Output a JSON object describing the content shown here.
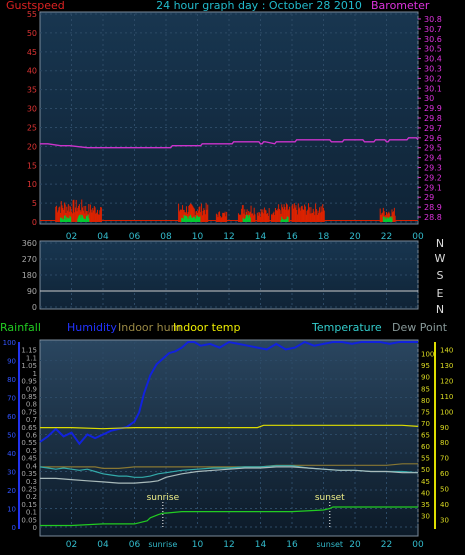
{
  "chart_data": [
    {
      "type": "line",
      "title": "24 hour graph day : October 28 2010",
      "left_label": "Gustspeed",
      "right_label": "Barometer",
      "x_ticks": [
        "02",
        "04",
        "06",
        "08",
        "10",
        "12",
        "14",
        "16",
        "18",
        "20",
        "22",
        "00"
      ],
      "ylim_left": [
        0,
        55
      ],
      "y_ticks_left": [
        0,
        5,
        10,
        15,
        20,
        25,
        30,
        35,
        40,
        45,
        50,
        55
      ],
      "ylim_right": [
        28.75,
        30.85
      ],
      "y_ticks_right": [
        "28.8",
        "28.9",
        "29",
        "29.1",
        "29.2",
        "29.3",
        "29.4",
        "29.5",
        "29.6",
        "29.7",
        "29.8",
        "29.9",
        "30",
        "30.1",
        "30.2",
        "30.3",
        "30.4",
        "30.5",
        "30.6",
        "30.7",
        "30.8"
      ],
      "series": [
        {
          "name": "Barometer",
          "color": "#cc33cc",
          "x": [
            0,
            0.5,
            1.3,
            1.9,
            3.0,
            5.5,
            8.3,
            8.4,
            10.2,
            10.3,
            12.2,
            12.3,
            13.9,
            14.0,
            14.1,
            14.2,
            14.3,
            14.9,
            15.0,
            16.2,
            16.3,
            18.4,
            18.5,
            19.2,
            19.3,
            20.5,
            20.6,
            21.2,
            21.3,
            21.9,
            22.0,
            22.1,
            22.2,
            23.3,
            23.4,
            23.9,
            24.0
          ],
          "y": [
            29.54,
            29.54,
            29.52,
            29.52,
            29.5,
            29.5,
            29.5,
            29.52,
            29.52,
            29.54,
            29.54,
            29.56,
            29.56,
            29.54,
            29.54,
            29.56,
            29.56,
            29.54,
            29.56,
            29.56,
            29.58,
            29.58,
            29.56,
            29.56,
            29.58,
            29.58,
            29.56,
            29.56,
            29.58,
            29.58,
            29.56,
            29.56,
            29.58,
            29.58,
            29.6,
            29.6,
            29.58
          ]
        },
        {
          "name": "Gustspeed",
          "color": "#dd2200",
          "bursts": [
            [
              1.0,
              2.8,
              6
            ],
            [
              2.8,
              3.9,
              5
            ],
            [
              8.8,
              10.7,
              5
            ],
            [
              11.2,
              11.9,
              3
            ],
            [
              12.6,
              13.7,
              5
            ],
            [
              13.8,
              14.6,
              4
            ],
            [
              14.7,
              15.9,
              5
            ],
            [
              16.0,
              18.1,
              5
            ],
            [
              21.6,
              22.6,
              4
            ]
          ]
        },
        {
          "name": "Windspeed",
          "color": "#00cc33",
          "bursts": [
            [
              1.3,
              2.0,
              2
            ],
            [
              2.4,
              3.1,
              2
            ],
            [
              9.0,
              10.2,
              2
            ],
            [
              12.9,
              13.4,
              2
            ],
            [
              15.3,
              15.8,
              1.5
            ],
            [
              21.8,
              22.4,
              2
            ]
          ]
        }
      ]
    },
    {
      "type": "line",
      "x_ticks": [
        "02",
        "04",
        "06",
        "08",
        "10",
        "12",
        "14",
        "16",
        "18",
        "20",
        "22",
        "00"
      ],
      "ylim": [
        0,
        360
      ],
      "y_ticks": [
        0,
        90,
        180,
        270,
        360
      ],
      "compass_labels": [
        "N",
        "W",
        "S",
        "E",
        "N"
      ],
      "series": [
        {
          "name": "Wind direction",
          "color": "#cccccc",
          "x": [
            0,
            24
          ],
          "y": [
            90,
            90
          ]
        }
      ]
    },
    {
      "type": "line",
      "legend": [
        "Rainfall",
        "Humidity",
        "Indoor hum",
        "Indoor temp",
        "Temperature",
        "Dew Point"
      ],
      "x_ticks": [
        "02",
        "04",
        "06",
        "08",
        "10",
        "12",
        "14",
        "16",
        "18",
        "20",
        "22",
        "00"
      ],
      "x_special_labels": [
        "sunrise",
        "sunset"
      ],
      "sunrise_hour": 7.8,
      "sunset_hour": 18.4,
      "ylim_left": [
        0,
        100
      ],
      "y_ticks_left": [
        0,
        10,
        20,
        30,
        40,
        50,
        60,
        70,
        80,
        90,
        100
      ],
      "ylim_inner": [
        0,
        1.2
      ],
      "y_ticks_inner": [
        "0",
        "0.05",
        "0.1",
        "0.15",
        "0.2",
        "0.25",
        "0.3",
        "0.35",
        "0.4",
        "0.45",
        "0.5",
        "0.55",
        "0.6",
        "0.65",
        "0.7",
        "0.75",
        "0.8",
        "0.85",
        "0.9",
        "0.95",
        "1",
        "1.05",
        "1.1",
        "1.15"
      ],
      "ylim_right_outer": [
        25,
        145
      ],
      "y_ticks_right_outer": [
        30,
        40,
        50,
        60,
        70,
        80,
        90,
        100,
        110,
        120,
        130,
        140
      ],
      "ylim_right_inner": [
        25,
        105
      ],
      "y_ticks_right_inner": [
        30,
        35,
        40,
        45,
        50,
        55,
        60,
        65,
        70,
        75,
        80,
        85,
        90,
        95,
        100
      ],
      "series": [
        {
          "name": "Humidity",
          "color": "#1122dd",
          "axis": "left",
          "x": [
            0,
            0.5,
            1.0,
            1.5,
            2.0,
            2.5,
            3.0,
            3.5,
            4.0,
            4.5,
            5.0,
            5.5,
            6.0,
            6.3,
            6.6,
            7.0,
            7.4,
            7.8,
            8.2,
            8.6,
            9.0,
            9.4,
            9.8,
            10.2,
            10.8,
            11.4,
            12.0,
            12.6,
            13.2,
            13.8,
            14.4,
            15.0,
            15.6,
            16.2,
            16.8,
            17.4,
            18.0,
            18.6,
            19.2,
            19.8,
            20.4,
            21.0,
            21.6,
            22.2,
            22.8,
            23.4,
            24.0
          ],
          "y": [
            46,
            49,
            53,
            49,
            51,
            45,
            50,
            48,
            50,
            52,
            53,
            54,
            57,
            62,
            72,
            82,
            88,
            91,
            94,
            95,
            97,
            100,
            100,
            98,
            99,
            97,
            100,
            99,
            98,
            97,
            96,
            99,
            96,
            97,
            100,
            98,
            99,
            100,
            100,
            99,
            100,
            100,
            100,
            99,
            100,
            100,
            100
          ]
        },
        {
          "name": "Indoor hum",
          "color": "#887733",
          "axis": "right_outer",
          "x": [
            0,
            1.0,
            2.0,
            3.5,
            4.0,
            5.0,
            6.0,
            8.0,
            10.0,
            12.0,
            14.0,
            15.0,
            16.0,
            17.0,
            18.0,
            20.0,
            21.0,
            22.0,
            23.0,
            24.0
          ],
          "y": [
            64,
            64,
            64,
            64,
            63,
            63,
            64,
            64,
            64,
            64,
            64,
            65,
            65,
            65,
            65,
            65,
            65,
            65,
            66,
            66
          ]
        },
        {
          "name": "Indoor temp",
          "color": "#dddd00",
          "axis": "right_inner",
          "x": [
            0,
            2.0,
            4.0,
            6.0,
            8.0,
            10.0,
            12.0,
            13.8,
            14.2,
            15.0,
            16.0,
            18.0,
            20.0,
            22.0,
            23.0,
            24.0
          ],
          "y": [
            68,
            68,
            67.5,
            68,
            68,
            68,
            68,
            68,
            69,
            69,
            69,
            69,
            69,
            69,
            69,
            68.5
          ]
        },
        {
          "name": "Temperature",
          "color": "#33aaaa",
          "axis": "right_inner",
          "x": [
            0,
            0.5,
            1.0,
            1.5,
            2.0,
            2.5,
            3.0,
            3.5,
            4.0,
            4.5,
            5.0,
            5.5,
            6.0,
            6.5,
            7.0,
            7.5,
            8.0,
            9.0,
            10.0,
            11.0,
            12.0,
            13.0,
            14.0,
            15.0,
            16.0,
            17.0,
            18.0,
            19.0,
            20.0,
            21.0,
            22.0,
            23.0,
            24.0
          ],
          "y": [
            51,
            50.5,
            50,
            50.5,
            50,
            49.5,
            50,
            49,
            48,
            47.5,
            47,
            47,
            46.5,
            46.5,
            47,
            48,
            48.5,
            49.5,
            50,
            50.5,
            50.5,
            51,
            51,
            51.5,
            51.5,
            50.5,
            50,
            49.5,
            49.5,
            49,
            49,
            49,
            48.5
          ]
        },
        {
          "name": "Dew Point",
          "color": "#aabbbb",
          "axis": "right_inner",
          "x": [
            0,
            1.0,
            2.0,
            3.0,
            4.0,
            5.0,
            6.0,
            7.0,
            7.5,
            8.0,
            9.0,
            10.0,
            11.0,
            12.0,
            13.0,
            14.0,
            15.0,
            16.0,
            17.0,
            18.0,
            19.0,
            20.0,
            21.0,
            22.0,
            23.0,
            24.0
          ],
          "y": [
            46,
            46,
            45.5,
            45,
            44.5,
            44,
            44,
            44.5,
            45,
            46.5,
            48,
            49,
            49.5,
            50,
            50.5,
            50.5,
            51,
            51,
            50.5,
            50,
            49.5,
            49.5,
            49,
            49,
            48.5,
            48.5
          ]
        },
        {
          "name": "Rainfall",
          "color": "#22cc22",
          "axis": "inner",
          "x": [
            0,
            2.0,
            4.0,
            6.0,
            6.8,
            7.0,
            7.5,
            7.8,
            8.0,
            9.0,
            10.0,
            12.0,
            14.0,
            16.0,
            18.0,
            18.4,
            18.6,
            20.0,
            22.0,
            24.0
          ],
          "y": [
            0.01,
            0.01,
            0.02,
            0.02,
            0.04,
            0.06,
            0.08,
            0.09,
            0.09,
            0.1,
            0.1,
            0.1,
            0.1,
            0.1,
            0.11,
            0.12,
            0.13,
            0.13,
            0.13,
            0.13
          ]
        }
      ]
    }
  ]
}
